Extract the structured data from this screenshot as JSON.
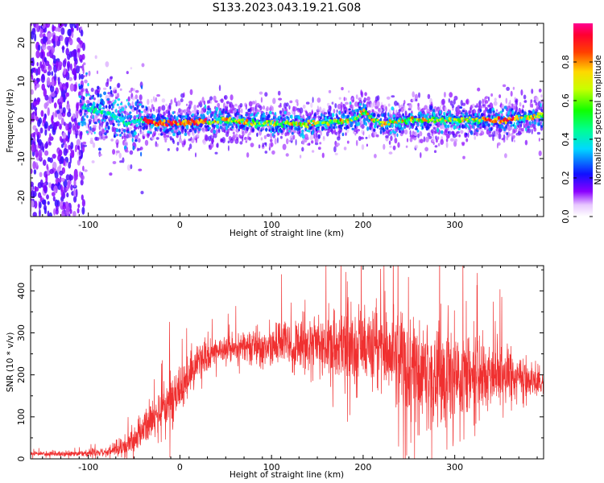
{
  "figure_title": "S133.2023.043.19.21.G08",
  "chart_data": [
    {
      "type": "heatmap",
      "title": "",
      "xlabel": "Height of straight line (km)",
      "ylabel": "Frequency (Hz)",
      "xlim": [
        -163,
        397
      ],
      "ylim": [
        -25,
        25
      ],
      "xticks": [
        -100,
        0,
        100,
        200,
        300
      ],
      "yticks": [
        -20,
        -10,
        0,
        10,
        20
      ],
      "colorbar": {
        "label": "Normalized spectral amplitude",
        "range": [
          0,
          1
        ],
        "ticks": [
          "0.0",
          "0.2",
          "0.4",
          "0.6",
          "0.8"
        ],
        "tick_values": [
          0,
          0.2,
          0.4,
          0.6,
          0.8
        ],
        "colormap": "gist_rainbow_r"
      },
      "ridge": {
        "description_points_x": [
          -100,
          -80,
          -60,
          -40,
          -20,
          0,
          50,
          100,
          150,
          190,
          200,
          220,
          250,
          300,
          350,
          397
        ],
        "frequency_hz": [
          3,
          2,
          -1,
          0,
          -1,
          -1,
          0,
          -1,
          -1,
          0,
          2,
          -1,
          0,
          0,
          0,
          1
        ]
      },
      "noise_region_x": [
        -163,
        -110
      ]
    },
    {
      "type": "line",
      "title": "",
      "xlabel": "Height of straight line (km)",
      "ylabel": "SNR (10 * v/v)",
      "xlim": [
        -163,
        397
      ],
      "ylim": [
        0,
        460
      ],
      "xticks": [
        -100,
        0,
        100,
        200,
        300
      ],
      "yticks": [
        0,
        100,
        200,
        300,
        400
      ],
      "series": [
        {
          "color": "#f03030",
          "envelope_x": [
            -163,
            -120,
            -80,
            -60,
            -40,
            -20,
            -5,
            0,
            20,
            40,
            60,
            100,
            150,
            200,
            230,
            250,
            280,
            300,
            330,
            360,
            397
          ],
          "mean_y": [
            12,
            12,
            15,
            30,
            70,
            110,
            140,
            170,
            230,
            260,
            265,
            270,
            270,
            270,
            255,
            230,
            200,
            195,
            200,
            195,
            180
          ],
          "spread_y": [
            5,
            6,
            10,
            25,
            40,
            55,
            60,
            60,
            40,
            30,
            30,
            50,
            70,
            80,
            90,
            110,
            120,
            110,
            80,
            60,
            25
          ]
        }
      ],
      "grid": false
    }
  ],
  "colors": {
    "snr_line": "#f03030"
  }
}
